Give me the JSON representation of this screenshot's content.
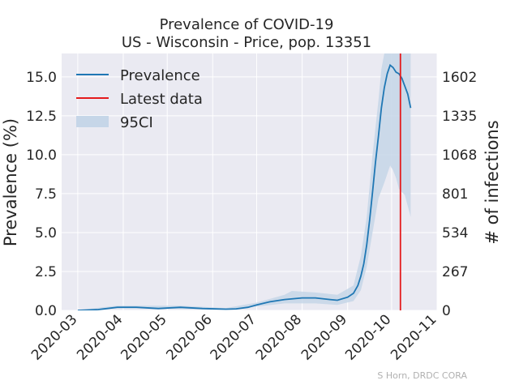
{
  "chart_data": {
    "type": "line",
    "title": "Prevalence of COVID-19",
    "subtitle": "US - Wisconsin - Price, pop. 13351",
    "ylabel": "Prevalence (%)",
    "y2label": "# of infections",
    "credit": "S Horn, DRDC CORA",
    "xlim": [
      "2020-02-19",
      "2020-11-01"
    ],
    "ylim": [
      0,
      16.5
    ],
    "x_ticks": [
      "2020-03",
      "2020-04",
      "2020-05",
      "2020-06",
      "2020-07",
      "2020-08",
      "2020-09",
      "2020-10",
      "2020-11"
    ],
    "y_ticks": [
      "0.0",
      "2.5",
      "5.0",
      "7.5",
      "10.0",
      "12.5",
      "15.0"
    ],
    "y2_ticks": [
      "0",
      "267",
      "534",
      "801",
      "1068",
      "1335",
      "1602"
    ],
    "grid": true,
    "legend_position": "top-left",
    "colors": {
      "background": "#eaeaf2",
      "grid": "#ffffff",
      "line": "#1f77b4",
      "ci": "#c6d6e8",
      "latest": "#e41a1c"
    },
    "series": [
      {
        "name": "Prevalence",
        "points": [
          [
            "2020-03-01",
            0.0
          ],
          [
            "2020-03-15",
            0.05
          ],
          [
            "2020-03-28",
            0.2
          ],
          [
            "2020-04-10",
            0.2
          ],
          [
            "2020-04-25",
            0.12
          ],
          [
            "2020-05-10",
            0.2
          ],
          [
            "2020-05-25",
            0.12
          ],
          [
            "2020-06-10",
            0.08
          ],
          [
            "2020-06-17",
            0.1
          ],
          [
            "2020-06-25",
            0.2
          ],
          [
            "2020-07-01",
            0.35
          ],
          [
            "2020-07-10",
            0.55
          ],
          [
            "2020-07-20",
            0.7
          ],
          [
            "2020-08-01",
            0.8
          ],
          [
            "2020-08-10",
            0.8
          ],
          [
            "2020-08-20",
            0.7
          ],
          [
            "2020-08-25",
            0.65
          ],
          [
            "2020-09-01",
            0.85
          ],
          [
            "2020-09-05",
            1.1
          ],
          [
            "2020-09-08",
            1.6
          ],
          [
            "2020-09-10",
            2.2
          ],
          [
            "2020-09-12",
            3.0
          ],
          [
            "2020-09-14",
            4.2
          ],
          [
            "2020-09-16",
            5.8
          ],
          [
            "2020-09-18",
            7.6
          ],
          [
            "2020-09-20",
            9.5
          ],
          [
            "2020-09-22",
            11.2
          ],
          [
            "2020-09-24",
            13.0
          ],
          [
            "2020-09-26",
            14.3
          ],
          [
            "2020-09-28",
            15.2
          ],
          [
            "2020-09-30",
            15.75
          ],
          [
            "2020-10-02",
            15.6
          ],
          [
            "2020-10-04",
            15.3
          ],
          [
            "2020-10-06",
            15.2
          ],
          [
            "2020-10-08",
            14.9
          ],
          [
            "2020-10-10",
            14.4
          ],
          [
            "2020-10-12",
            13.9
          ],
          [
            "2020-10-14",
            13.0
          ]
        ]
      }
    ],
    "ci95": {
      "name": "95CI",
      "lower": [
        [
          "2020-03-01",
          0.0
        ],
        [
          "2020-03-28",
          0.15
        ],
        [
          "2020-04-10",
          0.15
        ],
        [
          "2020-05-10",
          0.1
        ],
        [
          "2020-06-10",
          0.05
        ],
        [
          "2020-07-01",
          0.25
        ],
        [
          "2020-07-20",
          0.45
        ],
        [
          "2020-08-10",
          0.45
        ],
        [
          "2020-08-25",
          0.35
        ],
        [
          "2020-09-05",
          0.6
        ],
        [
          "2020-09-10",
          1.3
        ],
        [
          "2020-09-14",
          2.8
        ],
        [
          "2020-09-18",
          5.0
        ],
        [
          "2020-09-22",
          7.2
        ],
        [
          "2020-09-26",
          8.2
        ],
        [
          "2020-09-30",
          9.3
        ],
        [
          "2020-10-02",
          9.0
        ],
        [
          "2020-10-04",
          8.5
        ],
        [
          "2020-10-06",
          7.8
        ],
        [
          "2020-10-08",
          7.6
        ],
        [
          "2020-10-10",
          7.4
        ],
        [
          "2020-10-14",
          6.0
        ]
      ],
      "upper": [
        [
          "2020-03-01",
          0.02
        ],
        [
          "2020-03-28",
          0.3
        ],
        [
          "2020-04-10",
          0.3
        ],
        [
          "2020-05-10",
          0.3
        ],
        [
          "2020-06-10",
          0.15
        ],
        [
          "2020-07-01",
          0.5
        ],
        [
          "2020-07-20",
          1.0
        ],
        [
          "2020-07-25",
          1.25
        ],
        [
          "2020-08-10",
          1.15
        ],
        [
          "2020-08-25",
          1.0
        ],
        [
          "2020-09-05",
          1.6
        ],
        [
          "2020-09-10",
          3.5
        ],
        [
          "2020-09-14",
          6.0
        ],
        [
          "2020-09-18",
          10.0
        ],
        [
          "2020-09-22",
          13.5
        ],
        [
          "2020-09-24",
          15.5
        ],
        [
          "2020-09-26",
          16.5
        ],
        [
          "2020-10-14",
          16.5
        ]
      ]
    },
    "latest_data": {
      "name": "Latest data",
      "date": "2020-10-07"
    }
  }
}
